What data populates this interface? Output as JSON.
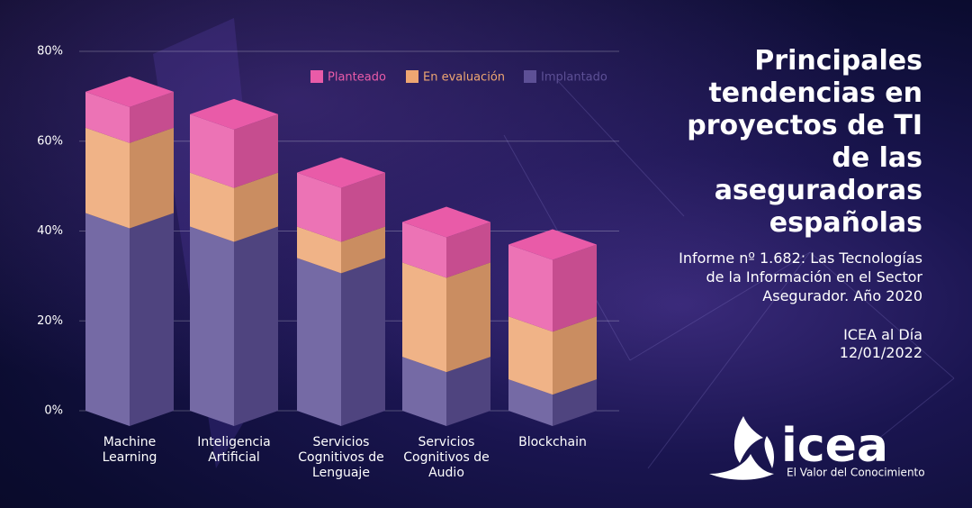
{
  "chart_data": {
    "type": "stacked-bar-3d",
    "categories": [
      "Machine Learning",
      "Inteligencia Artificial",
      "Servicios Cognitivos de Lenguaje",
      "Servicios Cognitivos de Audio",
      "Blockchain"
    ],
    "series": [
      {
        "name": "Planteado",
        "color": "#e95ba8",
        "values": [
          8,
          13,
          12,
          9,
          16
        ]
      },
      {
        "name": "En evaluación",
        "color": "#eea672",
        "values": [
          19,
          12,
          7,
          21,
          14
        ]
      },
      {
        "name": "Implantado",
        "color": "#5d5096",
        "values": [
          44,
          41,
          34,
          12,
          7
        ]
      }
    ],
    "ylim": [
      0,
      80
    ],
    "yticks": [
      {
        "value": 0,
        "label": "0%"
      },
      {
        "value": 20,
        "label": "20%"
      },
      {
        "value": 40,
        "label": "40%"
      },
      {
        "value": 60,
        "label": "60%"
      },
      {
        "value": 80,
        "label": "80%"
      }
    ],
    "grid": true,
    "legend": "top-right"
  },
  "header": {
    "title": "Principales tendencias en proyectos de TI de las aseguradoras españolas",
    "source": "Informe nº 1.682: Las Tecnologías de la Información en el Sector Asegurador. Año 2020",
    "publication": "ICEA al Día",
    "date": "12/01/2022"
  },
  "logo": {
    "name": "icea",
    "tagline": "El Valor del Conocimiento"
  }
}
